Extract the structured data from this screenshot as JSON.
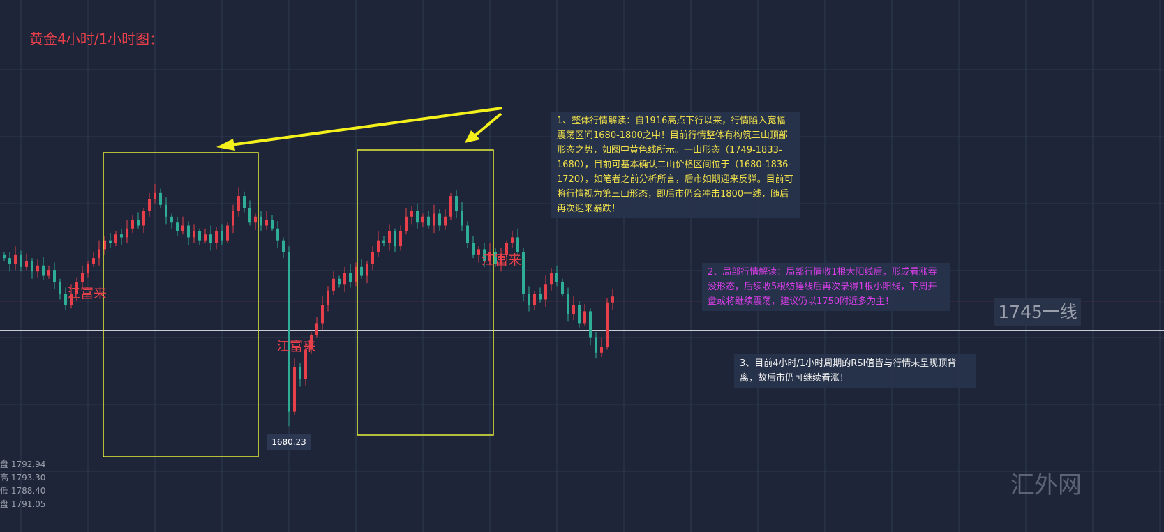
{
  "title": "黄金4小时/1小时图：",
  "notes": [
    "1、整体行情解读：自1916高点下行以来，行情陷入宽幅震荡区间1680-1800之中！目前行情整体有构筑三山顶部形态之势，如图中黄色线所示。一山形态（1749-1833-1680），目前可基本确认二山价格区间位于（1680-1836-1720），如笔者之前分析所言，后市如期迎来反弹。目前可将行情视为第三山形态，即后市仍会冲击1800一线，随后再次迎来暴跌！",
    "2、局部行情解读：局部行情收1根大阳线后，形成看涨吞没形态，后续收5根纺锤线后再次录得1根小阳线，下周开盘或将继续震荡，建议仍以1750附近多为主！",
    "3、目前4小时/1小时周期的RSI值皆与行情未呈现顶背离，故后市仍可继续看涨！"
  ],
  "labels": [
    "江富来",
    "江富来",
    "江富来"
  ],
  "low_tooltip": "1680.23",
  "level_label": "1745一线",
  "ohlc": [
    "盘 1792.94",
    "高 1793.30",
    "低 1788.40",
    "盘 1791.05"
  ],
  "watermark": "汇外网",
  "colors": {
    "up": "#e8404a",
    "down": "#2fae97",
    "boxes": "#e6ef3a",
    "arrows": "#f4f01c",
    "current_line": "#b0405a",
    "level_line": "#c9ccd2"
  },
  "chart_data": {
    "type": "candlestick",
    "closes": [
      1794,
      1790,
      1796,
      1788,
      1792,
      1785,
      1789,
      1782,
      1786,
      1778,
      1770,
      1762,
      1770,
      1778,
      1784,
      1790,
      1794,
      1800,
      1806,
      1804,
      1810,
      1808,
      1814,
      1820,
      1816,
      1826,
      1834,
      1838,
      1830,
      1822,
      1818,
      1812,
      1816,
      1808,
      1812,
      1806,
      1810,
      1804,
      1812,
      1806,
      1816,
      1826,
      1836,
      1828,
      1818,
      1822,
      1816,
      1820,
      1814,
      1806,
      1798,
      1690,
      1720,
      1712,
      1732,
      1742,
      1750,
      1762,
      1772,
      1780,
      1776,
      1784,
      1778,
      1788,
      1782,
      1790,
      1798,
      1806,
      1804,
      1812,
      1802,
      1812,
      1822,
      1826,
      1818,
      1822,
      1816,
      1824,
      1816,
      1822,
      1836,
      1826,
      1816,
      1804,
      1796,
      1800,
      1792,
      1798,
      1790,
      1796,
      1804,
      1808,
      1798,
      1770,
      1762,
      1770,
      1766,
      1776,
      1784,
      1778,
      1770,
      1756,
      1762,
      1750,
      1758,
      1740,
      1730,
      1734,
      1764,
      1768
    ],
    "low": 1680.23,
    "current_price_line": 1765,
    "level_line": 1745,
    "grid": true
  }
}
